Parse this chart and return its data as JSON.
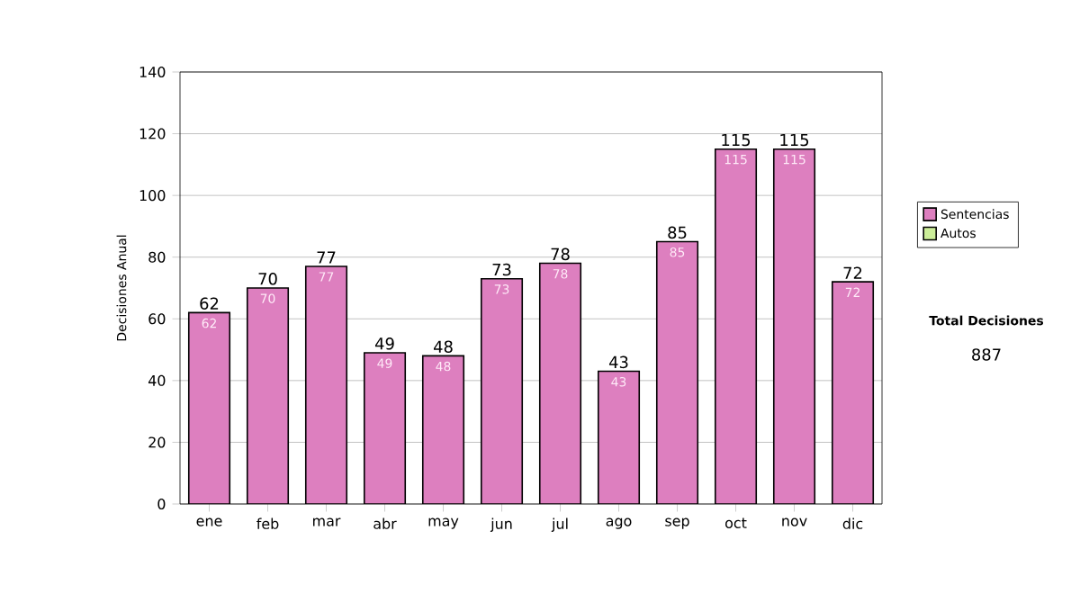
{
  "chart_data": {
    "type": "bar",
    "stacked": true,
    "ylabel": "Decisiones Anual",
    "categories": [
      "ene",
      "feb",
      "mar",
      "abr",
      "may",
      "jun",
      "jul",
      "ago",
      "sep",
      "oct",
      "nov",
      "dic"
    ],
    "series": [
      {
        "name": "Sentencias",
        "color": "#dd7fbf",
        "values": [
          62,
          70,
          77,
          49,
          48,
          73,
          78,
          43,
          85,
          115,
          115,
          72
        ],
        "value_labels": [
          "62",
          "70",
          "77",
          "49",
          "48",
          "73",
          "78",
          "43",
          "85",
          "115",
          "115",
          "72"
        ]
      },
      {
        "name": "Autos",
        "color": "#ccee99",
        "values": [
          0,
          0,
          0,
          0,
          0,
          0,
          0,
          0,
          0,
          0,
          0,
          0
        ]
      }
    ],
    "totals": [
      "62",
      "70",
      "77",
      "49",
      "48",
      "73",
      "78",
      "43",
      "85",
      "115",
      "115",
      "72"
    ],
    "ylim": [
      0,
      140
    ],
    "yticks": [
      0,
      20,
      40,
      60,
      80,
      100,
      120,
      140
    ],
    "grid": "y",
    "legend": "right",
    "annotations": [
      "Total Decisiones",
      "887"
    ]
  }
}
